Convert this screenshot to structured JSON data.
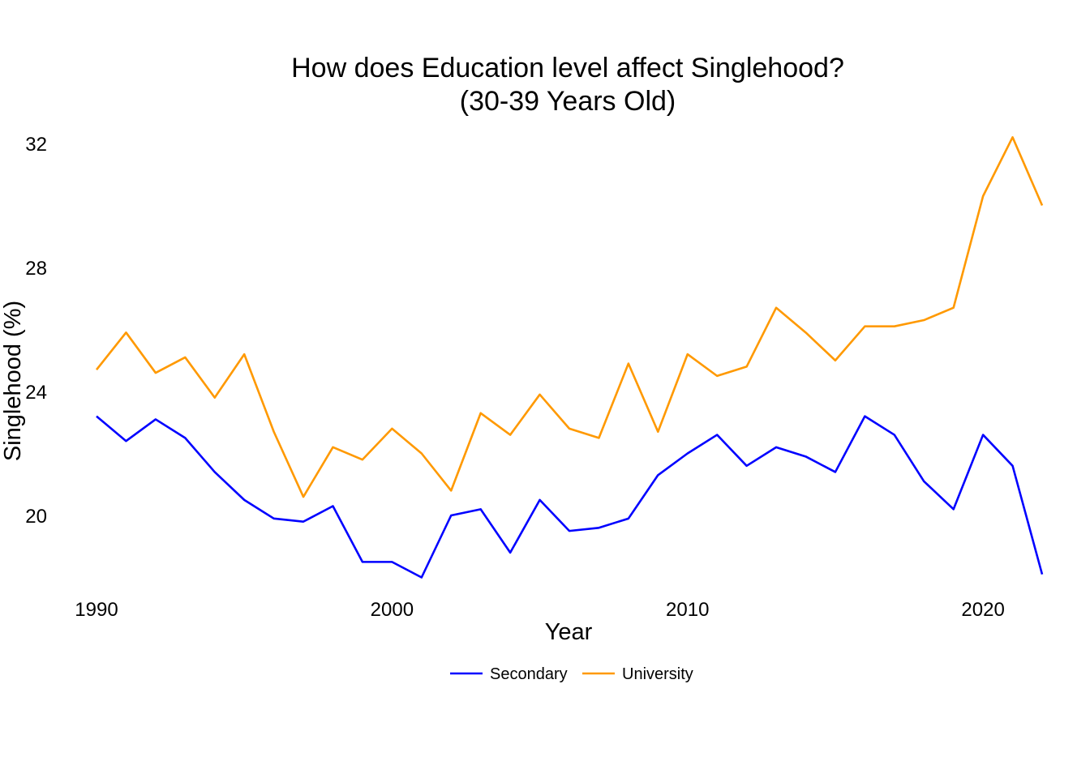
{
  "chart_data": {
    "type": "line",
    "title": "How does Education level affect Singlehood?",
    "subtitle": "(30-39 Years Old)",
    "xlabel": "Year",
    "ylabel": "Singlehood (%)",
    "x": [
      1990,
      1991,
      1992,
      1993,
      1994,
      1995,
      1996,
      1997,
      1998,
      1999,
      2000,
      2001,
      2002,
      2003,
      2004,
      2005,
      2006,
      2007,
      2008,
      2009,
      2010,
      2011,
      2012,
      2013,
      2014,
      2015,
      2016,
      2017,
      2018,
      2019,
      2020,
      2021,
      2022
    ],
    "xlim": [
      1990,
      2022
    ],
    "ylim": [
      18,
      32.2
    ],
    "xticks": [
      1990,
      2000,
      2010,
      2020
    ],
    "xtick_labels": [
      "1990",
      "2000",
      "2010",
      "2020"
    ],
    "yticks": [
      20,
      24,
      28,
      32
    ],
    "ytick_labels": [
      "20",
      "24",
      "28",
      "32"
    ],
    "grid": false,
    "legend_position": "bottom",
    "series": [
      {
        "name": "Secondary",
        "color": "#0000FF",
        "values": [
          23.2,
          22.4,
          23.1,
          22.5,
          21.4,
          20.5,
          19.9,
          19.8,
          20.3,
          18.5,
          18.5,
          18.0,
          20.0,
          20.2,
          18.8,
          20.5,
          19.5,
          19.6,
          19.9,
          21.3,
          22.0,
          22.6,
          21.6,
          22.2,
          21.9,
          21.4,
          23.2,
          22.6,
          21.1,
          20.2,
          22.6,
          21.6,
          18.1
        ]
      },
      {
        "name": "University",
        "color": "#FF9900",
        "values": [
          24.7,
          25.9,
          24.6,
          25.1,
          23.8,
          25.2,
          22.7,
          20.6,
          22.2,
          21.8,
          22.8,
          22.0,
          20.8,
          23.3,
          22.6,
          23.9,
          22.8,
          22.5,
          24.9,
          22.7,
          25.2,
          24.5,
          24.8,
          26.7,
          25.9,
          25.0,
          26.1,
          26.1,
          26.3,
          26.7,
          30.3,
          32.2,
          30.0
        ]
      }
    ]
  }
}
